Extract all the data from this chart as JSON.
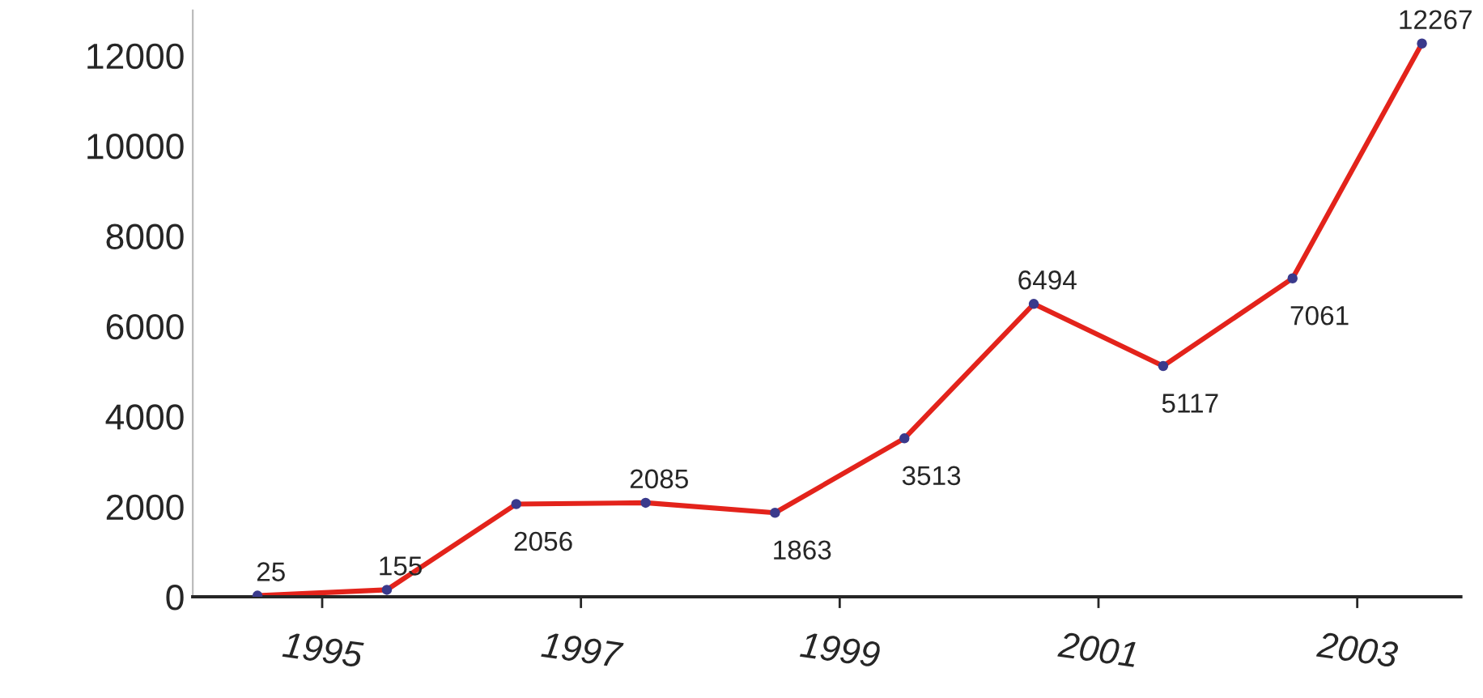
{
  "chart_data": {
    "type": "line",
    "x": [
      1994.5,
      1995.5,
      1996.5,
      1997.5,
      1998.5,
      1999.5,
      2000.5,
      2001.5,
      2002.5,
      2003.5
    ],
    "series": [
      {
        "color": "#e3231b",
        "values": [
          25,
          155,
          2056,
          2085,
          1863,
          3513,
          6494,
          5117,
          7061,
          12267
        ]
      }
    ],
    "xlim": [
      1994.0,
      2003.8
    ],
    "xticks": [
      1995,
      1997,
      1999,
      2001,
      2003
    ],
    "ylim": [
      0,
      13000
    ],
    "yticks": [
      0,
      2000,
      4000,
      6000,
      8000,
      10000,
      12000
    ],
    "data_labels": true,
    "marker": "circle",
    "line_style": "solid",
    "grid": false,
    "legend": false
  }
}
